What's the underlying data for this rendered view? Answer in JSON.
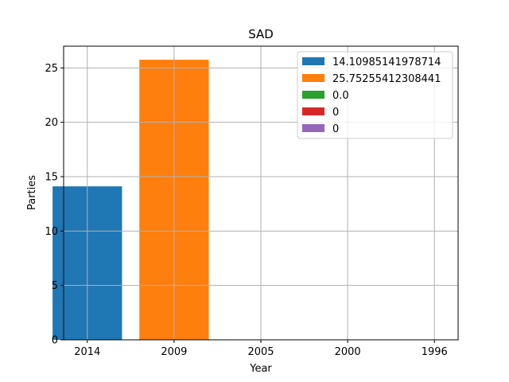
{
  "chart_data": {
    "type": "bar",
    "title": "SAD",
    "xlabel": "Year",
    "ylabel": "Parties",
    "categories": [
      "2014",
      "2009",
      "2005",
      "2000",
      "1996"
    ],
    "values": [
      14.10985141978714,
      25.75255412308441,
      0.0,
      0,
      0
    ],
    "ylim": [
      0,
      27
    ],
    "yticks": [
      0,
      5,
      10,
      15,
      20,
      25
    ],
    "grid": true,
    "legend_position": "top-right",
    "legend": [
      {
        "label": "14.10985141978714",
        "color": "#1f77b4"
      },
      {
        "label": "25.75255412308441",
        "color": "#ff7f0e"
      },
      {
        "label": "0.0",
        "color": "#2ca02c"
      },
      {
        "label": "0",
        "color": "#d62728"
      },
      {
        "label": "0",
        "color": "#9467bd"
      }
    ]
  }
}
